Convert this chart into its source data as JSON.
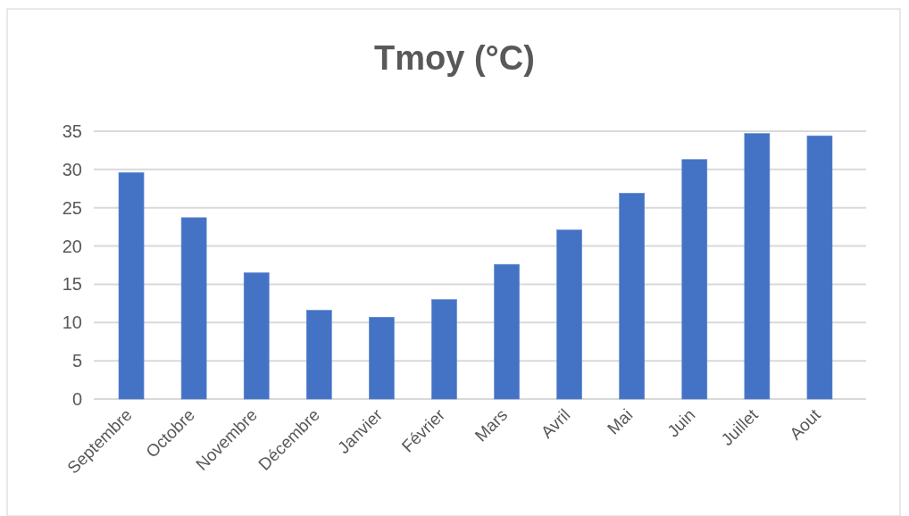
{
  "chart_data": {
    "type": "bar",
    "title": "Tmoy (°C)",
    "categories": [
      "Septembre",
      "Octobre",
      "Novembre",
      "Décembre",
      "Janvier",
      "Février",
      "Mars",
      "Avril",
      "Mai",
      "Juin",
      "Juillet",
      "Aout"
    ],
    "values": [
      29.6,
      23.7,
      16.5,
      11.6,
      10.7,
      13.0,
      17.6,
      22.1,
      26.9,
      31.3,
      34.7,
      34.4
    ],
    "color": "#4472c4",
    "ylim": [
      0,
      35
    ],
    "yticks": [
      0,
      5,
      10,
      15,
      20,
      25,
      30,
      35
    ],
    "grid": "y"
  }
}
